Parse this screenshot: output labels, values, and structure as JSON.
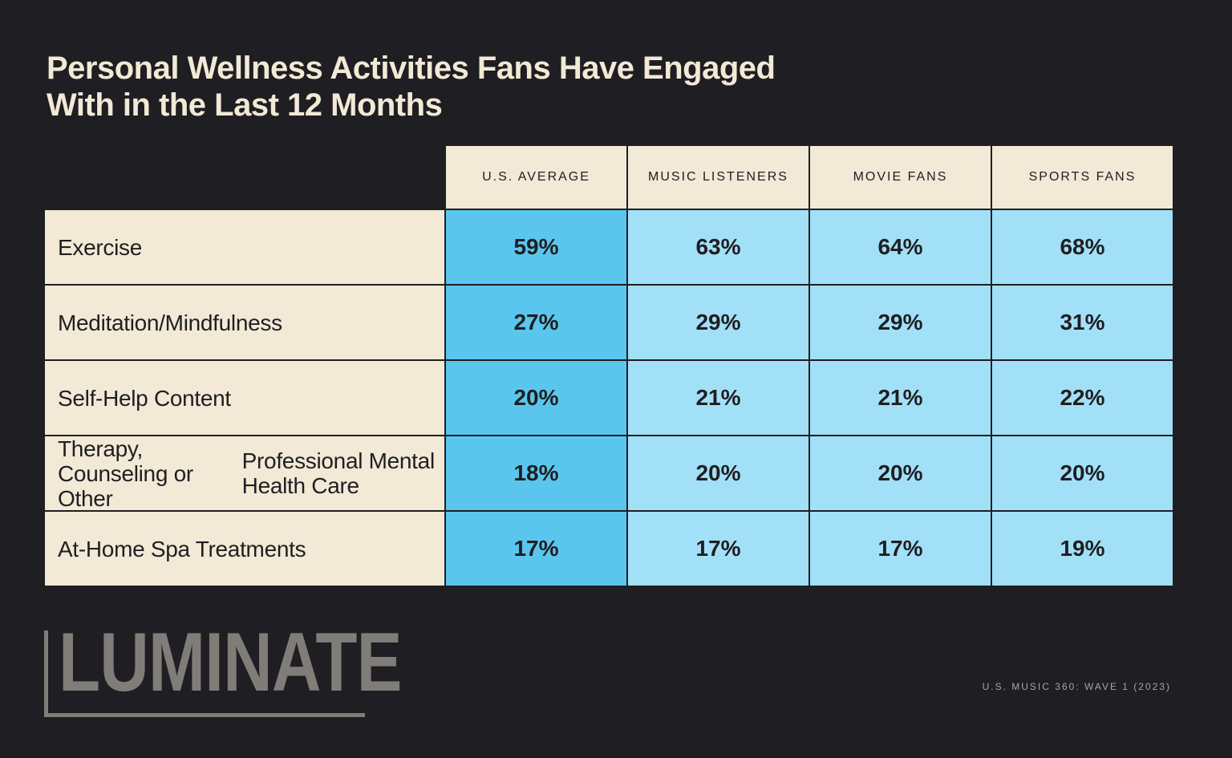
{
  "title": {
    "line1": "Personal Wellness Activities Fans Have Engaged",
    "line2": "With in the Last 12 Months"
  },
  "colors": {
    "background": "#1f1e22",
    "cream": "#f2e9d6",
    "primary_blue": "#5ac6ee",
    "secondary_blue": "#a2e0f7",
    "logo_gray": "#807c78"
  },
  "chart_data": {
    "type": "table",
    "title": "Personal Wellness Activities Fans Have Engaged With in the Last 12 Months",
    "columns": [
      "U.S. AVERAGE",
      "MUSIC LISTENERS",
      "MOVIE FANS",
      "SPORTS FANS"
    ],
    "rows": [
      {
        "label": "Exercise",
        "values": [
          "59%",
          "63%",
          "64%",
          "68%"
        ]
      },
      {
        "label": "Meditation/Mindfulness",
        "values": [
          "27%",
          "29%",
          "29%",
          "31%"
        ]
      },
      {
        "label": "Self-Help Content",
        "values": [
          "20%",
          "21%",
          "21%",
          "22%"
        ]
      },
      {
        "label": "Therapy, Counseling or Other Professional Mental Health Care",
        "label_lines": [
          "Therapy, Counseling or Other",
          "Professional Mental Health Care"
        ],
        "values": [
          "18%",
          "20%",
          "20%",
          "20%"
        ]
      },
      {
        "label": "At-Home Spa Treatments",
        "values": [
          "17%",
          "17%",
          "17%",
          "19%"
        ]
      }
    ]
  },
  "footer": {
    "logo_text": "LUMINATE",
    "source": "U.S. MUSIC 360: WAVE 1 (2023)"
  }
}
